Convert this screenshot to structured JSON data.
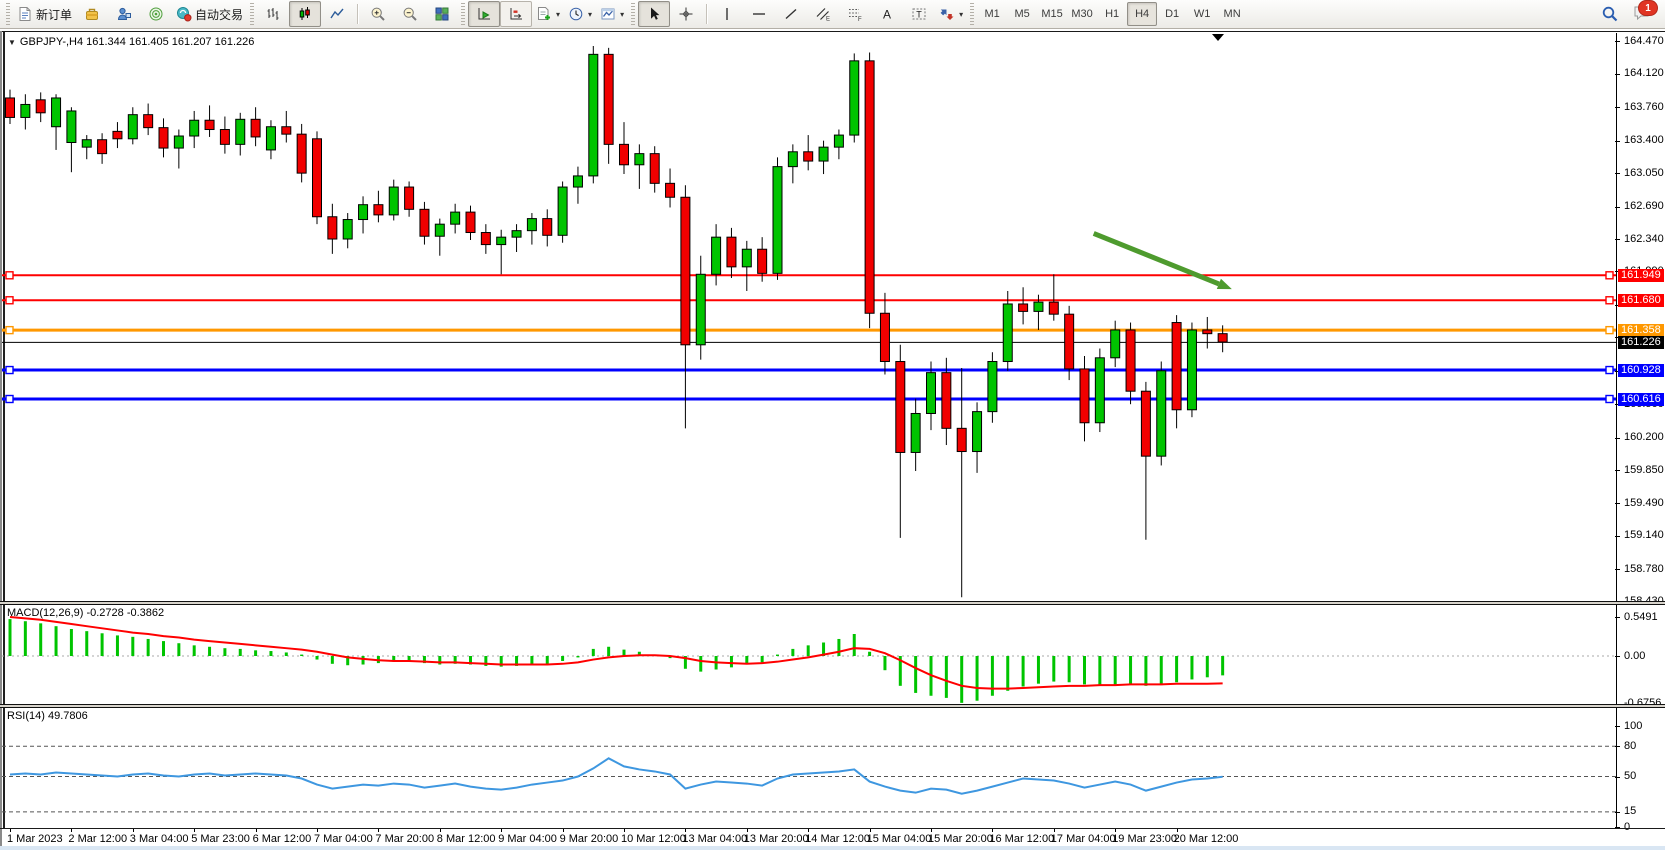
{
  "toolbar": {
    "new_order": "新订单",
    "auto_trading": "自动交易",
    "timeframes": [
      "M1",
      "M5",
      "M15",
      "M30",
      "H1",
      "H4",
      "D1",
      "W1",
      "MN"
    ],
    "active_timeframe": "H4",
    "chat_badge": "1",
    "icons": {
      "new_order": "document",
      "toolbox": "yellow-box",
      "market_watch": "person",
      "signals": "green-signal",
      "auto_trading": "teal-robot-red-dot",
      "chart_bars": "bar-chart",
      "chart_candles": "candlestick",
      "chart_line": "line-chart",
      "zoom_in": "magnifier-plus",
      "zoom_out": "magnifier-minus",
      "tile_windows": "grid",
      "auto_scroll": "axis-green-arrow",
      "chart_shift": "axis-red-mark",
      "indicators": "doc-green-plus",
      "periods": "clock",
      "templates": "framed-chart",
      "cursor": "arrow-pointer",
      "crosshair": "cross",
      "vertical_line": "vline",
      "horizontal_line": "hline",
      "trendline": "diagonal-line",
      "equidistant_channel": "hatched-E",
      "fibonacci": "dotted-F",
      "text": "letter-A",
      "text_label": "boxed-T",
      "arrows": "arrow-shapes",
      "search": "magnifier",
      "chat": "speech-bubble"
    }
  },
  "chart": {
    "symbol_info": "GBPJPY-,H4 161.344 161.405 161.207 161.226",
    "ohlc": {
      "open": "161.344",
      "high": "161.405",
      "low": "161.207",
      "close": "161.226"
    }
  },
  "chart_data": {
    "type": "candlestick",
    "symbol": "GBPJPY-",
    "timeframe": "H4",
    "colors": {
      "up": "#00c400",
      "down": "#f10000",
      "macd_histogram": "#00c400",
      "macd_signal": "#ff0000",
      "rsi_line": "#3e97e0",
      "arrow": "#4e9b2e"
    },
    "price_axis": {
      "ticks": [
        "164.470",
        "164.120",
        "163.760",
        "163.400",
        "163.050",
        "162.690",
        "162.340",
        "161.990",
        "161.630",
        "161.280",
        "160.920",
        "160.560",
        "160.200",
        "159.850",
        "159.490",
        "159.140",
        "158.780",
        "158.430"
      ]
    },
    "horizontal_lines": [
      {
        "price": 161.949,
        "label": "161.949",
        "color": "#ff0000",
        "width": 2
      },
      {
        "price": 161.68,
        "label": "161.680",
        "color": "#ff0000",
        "width": 2
      },
      {
        "price": 161.358,
        "label": "161.358",
        "color": "#ff9800",
        "width": 3
      },
      {
        "price": 160.928,
        "label": "160.928",
        "color": "#0000ff",
        "width": 3
      },
      {
        "price": 160.616,
        "label": "160.616",
        "color": "#0000ff",
        "width": 3
      }
    ],
    "bid": {
      "price": 161.226,
      "label": "161.226",
      "color": "#000000"
    },
    "trend_arrow": {
      "from_index": 70.6,
      "from_price": 162.4,
      "to_index": 79.6,
      "to_price": 161.8,
      "color": "#4e9b2e"
    },
    "candles": [
      [
        163.86,
        163.95,
        163.58,
        163.65
      ],
      [
        163.65,
        163.9,
        163.52,
        163.79
      ],
      [
        163.84,
        163.92,
        163.6,
        163.7
      ],
      [
        163.55,
        163.9,
        163.3,
        163.86
      ],
      [
        163.38,
        163.76,
        163.06,
        163.72
      ],
      [
        163.33,
        163.46,
        163.2,
        163.41
      ],
      [
        163.41,
        163.48,
        163.15,
        163.26
      ],
      [
        163.5,
        163.6,
        163.32,
        163.42
      ],
      [
        163.42,
        163.76,
        163.36,
        163.68
      ],
      [
        163.68,
        163.8,
        163.46,
        163.54
      ],
      [
        163.54,
        163.64,
        163.22,
        163.32
      ],
      [
        163.32,
        163.52,
        163.1,
        163.45
      ],
      [
        163.45,
        163.72,
        163.32,
        163.62
      ],
      [
        163.62,
        163.78,
        163.44,
        163.52
      ],
      [
        163.52,
        163.66,
        163.26,
        163.36
      ],
      [
        163.36,
        163.7,
        163.24,
        163.63
      ],
      [
        163.63,
        163.76,
        163.34,
        163.44
      ],
      [
        163.3,
        163.62,
        163.2,
        163.55
      ],
      [
        163.55,
        163.72,
        163.38,
        163.47
      ],
      [
        163.47,
        163.58,
        162.95,
        163.05
      ],
      [
        163.42,
        163.5,
        162.5,
        162.58
      ],
      [
        162.58,
        162.72,
        162.18,
        162.34
      ],
      [
        162.34,
        162.62,
        162.24,
        162.55
      ],
      [
        162.55,
        162.8,
        162.4,
        162.71
      ],
      [
        162.71,
        162.86,
        162.52,
        162.6
      ],
      [
        162.6,
        162.98,
        162.54,
        162.9
      ],
      [
        162.9,
        162.96,
        162.58,
        162.66
      ],
      [
        162.66,
        162.74,
        162.28,
        162.37
      ],
      [
        162.37,
        162.56,
        162.16,
        162.5
      ],
      [
        162.5,
        162.72,
        162.4,
        162.63
      ],
      [
        162.63,
        162.7,
        162.33,
        162.41
      ],
      [
        162.41,
        162.5,
        162.18,
        162.28
      ],
      [
        162.28,
        162.44,
        161.96,
        162.36
      ],
      [
        162.36,
        162.5,
        162.2,
        162.43
      ],
      [
        162.43,
        162.62,
        162.28,
        162.56
      ],
      [
        162.56,
        162.66,
        162.26,
        162.38
      ],
      [
        162.38,
        162.96,
        162.3,
        162.9
      ],
      [
        162.9,
        163.12,
        162.72,
        163.02
      ],
      [
        163.02,
        164.42,
        162.94,
        164.33
      ],
      [
        164.33,
        164.4,
        163.15,
        163.36
      ],
      [
        163.36,
        163.6,
        163.04,
        163.14
      ],
      [
        163.14,
        163.36,
        162.88,
        163.26
      ],
      [
        163.26,
        163.34,
        162.84,
        162.94
      ],
      [
        162.94,
        163.1,
        162.68,
        162.79
      ],
      [
        162.79,
        162.92,
        160.3,
        161.2
      ],
      [
        161.2,
        162.16,
        161.04,
        161.96
      ],
      [
        161.96,
        162.5,
        161.84,
        162.36
      ],
      [
        162.36,
        162.46,
        161.92,
        162.04
      ],
      [
        162.04,
        162.32,
        161.78,
        162.23
      ],
      [
        162.23,
        162.36,
        161.88,
        161.97
      ],
      [
        161.97,
        163.22,
        161.9,
        163.12
      ],
      [
        163.12,
        163.36,
        162.94,
        163.28
      ],
      [
        163.28,
        163.46,
        163.08,
        163.18
      ],
      [
        163.18,
        163.4,
        163.04,
        163.33
      ],
      [
        163.33,
        163.52,
        163.2,
        163.46
      ],
      [
        163.46,
        164.34,
        163.38,
        164.26
      ],
      [
        164.26,
        164.35,
        161.38,
        161.54
      ],
      [
        161.54,
        161.76,
        160.88,
        161.02
      ],
      [
        161.02,
        161.2,
        159.12,
        160.04
      ],
      [
        160.04,
        160.62,
        159.84,
        160.46
      ],
      [
        160.46,
        161.02,
        160.28,
        160.9
      ],
      [
        160.9,
        161.06,
        160.12,
        160.3
      ],
      [
        160.3,
        160.95,
        158.48,
        160.05
      ],
      [
        160.05,
        160.58,
        159.82,
        160.48
      ],
      [
        160.48,
        161.12,
        160.36,
        161.02
      ],
      [
        161.02,
        161.78,
        160.92,
        161.64
      ],
      [
        161.64,
        161.82,
        161.42,
        161.56
      ],
      [
        161.56,
        161.74,
        161.36,
        161.66
      ],
      [
        161.66,
        161.96,
        161.46,
        161.53
      ],
      [
        161.53,
        161.62,
        160.82,
        160.94
      ],
      [
        160.94,
        161.08,
        160.16,
        160.36
      ],
      [
        160.36,
        161.16,
        160.26,
        161.06
      ],
      [
        161.06,
        161.46,
        160.96,
        161.36
      ],
      [
        161.36,
        161.44,
        160.56,
        160.7
      ],
      [
        160.7,
        160.8,
        159.1,
        160.0
      ],
      [
        160.0,
        161.02,
        159.9,
        160.92
      ],
      [
        161.44,
        161.52,
        160.3,
        160.5
      ],
      [
        160.5,
        161.44,
        160.42,
        161.36
      ],
      [
        161.36,
        161.5,
        161.16,
        161.32
      ],
      [
        161.32,
        161.41,
        161.12,
        161.23
      ]
    ],
    "macd": {
      "label": "MACD(12,26,9)",
      "display": "MACD(12,26,9) -0.2728 -0.3862",
      "value": -0.2728,
      "signal_value": -0.3862,
      "axis": [
        {
          "label": "0.5491",
          "value": 0.5491
        },
        {
          "label": "0.00",
          "value": 0
        },
        {
          "label": "-0.6756",
          "value": -0.6756
        }
      ],
      "histogram": [
        0.52,
        0.49,
        0.46,
        0.42,
        0.38,
        0.35,
        0.32,
        0.29,
        0.27,
        0.24,
        0.21,
        0.18,
        0.15,
        0.13,
        0.11,
        0.1,
        0.08,
        0.07,
        0.05,
        0.02,
        -0.05,
        -0.11,
        -0.13,
        -0.12,
        -0.1,
        -0.08,
        -0.08,
        -0.1,
        -0.12,
        -0.11,
        -0.12,
        -0.14,
        -0.15,
        -0.14,
        -0.12,
        -0.11,
        -0.07,
        -0.02,
        0.1,
        0.13,
        0.09,
        0.06,
        0.02,
        -0.03,
        -0.18,
        -0.22,
        -0.19,
        -0.16,
        -0.11,
        -0.09,
        0.02,
        0.1,
        0.15,
        0.19,
        0.24,
        0.31,
        0.06,
        -0.2,
        -0.42,
        -0.52,
        -0.56,
        -0.59,
        -0.66,
        -0.63,
        -0.56,
        -0.49,
        -0.43,
        -0.39,
        -0.36,
        -0.37,
        -0.4,
        -0.42,
        -0.41,
        -0.39,
        -0.42,
        -0.41,
        -0.37,
        -0.33,
        -0.3,
        -0.2728
      ],
      "signal": [
        0.55,
        0.53,
        0.51,
        0.48,
        0.45,
        0.42,
        0.39,
        0.36,
        0.33,
        0.31,
        0.28,
        0.26,
        0.23,
        0.21,
        0.19,
        0.17,
        0.15,
        0.13,
        0.11,
        0.09,
        0.06,
        0.02,
        -0.02,
        -0.04,
        -0.06,
        -0.07,
        -0.07,
        -0.08,
        -0.09,
        -0.09,
        -0.1,
        -0.11,
        -0.12,
        -0.12,
        -0.12,
        -0.12,
        -0.11,
        -0.09,
        -0.05,
        -0.02,
        0.0,
        0.01,
        0.01,
        0.0,
        -0.03,
        -0.07,
        -0.09,
        -0.1,
        -0.11,
        -0.1,
        -0.08,
        -0.05,
        -0.02,
        0.02,
        0.06,
        0.11,
        0.1,
        0.04,
        -0.06,
        -0.17,
        -0.27,
        -0.35,
        -0.42,
        -0.45,
        -0.46,
        -0.46,
        -0.45,
        -0.44,
        -0.43,
        -0.42,
        -0.42,
        -0.41,
        -0.41,
        -0.4,
        -0.4,
        -0.4,
        -0.39,
        -0.39,
        -0.39,
        -0.3862
      ]
    },
    "rsi": {
      "label": "RSI(14)",
      "display": "RSI(14) 49.7806",
      "value": 49.7806,
      "levels": [
        80,
        50,
        15
      ],
      "axis": [
        {
          "label": "100",
          "value": 100
        },
        {
          "label": "80",
          "value": 80
        },
        {
          "label": "50",
          "value": 50
        },
        {
          "label": "15",
          "value": 15
        },
        {
          "label": "0",
          "value": 0
        }
      ],
      "values": [
        52,
        53,
        52,
        54,
        53,
        52,
        51,
        50,
        52,
        53,
        51,
        50,
        52,
        53,
        51,
        52,
        53,
        52,
        51,
        48,
        42,
        38,
        40,
        42,
        41,
        43,
        42,
        39,
        41,
        43,
        40,
        38,
        37,
        39,
        42,
        44,
        46,
        50,
        58,
        68,
        60,
        57,
        55,
        52,
        38,
        42,
        45,
        44,
        43,
        41,
        48,
        52,
        53,
        54,
        55,
        57,
        45,
        40,
        36,
        34,
        38,
        37,
        33,
        36,
        40,
        44,
        48,
        47,
        46,
        43,
        39,
        42,
        45,
        42,
        36,
        40,
        44,
        47,
        48,
        49.7806
      ]
    },
    "time_axis": {
      "label_every": 4,
      "labels": [
        "1 Mar 2023",
        "2 Mar 12:00",
        "3 Mar 04:00",
        "5 Mar 23:00",
        "6 Mar 12:00",
        "7 Mar 04:00",
        "7 Mar 20:00",
        "8 Mar 12:00",
        "9 Mar 04:00",
        "9 Mar 20:00",
        "10 Mar 12:00",
        "13 Mar 04:00",
        "13 Mar 20:00",
        "14 Mar 12:00",
        "15 Mar 04:00",
        "15 Mar 20:00",
        "16 Mar 12:00",
        "17 Mar 04:00",
        "19 Mar 23:00",
        "20 Mar 12:00"
      ]
    }
  }
}
